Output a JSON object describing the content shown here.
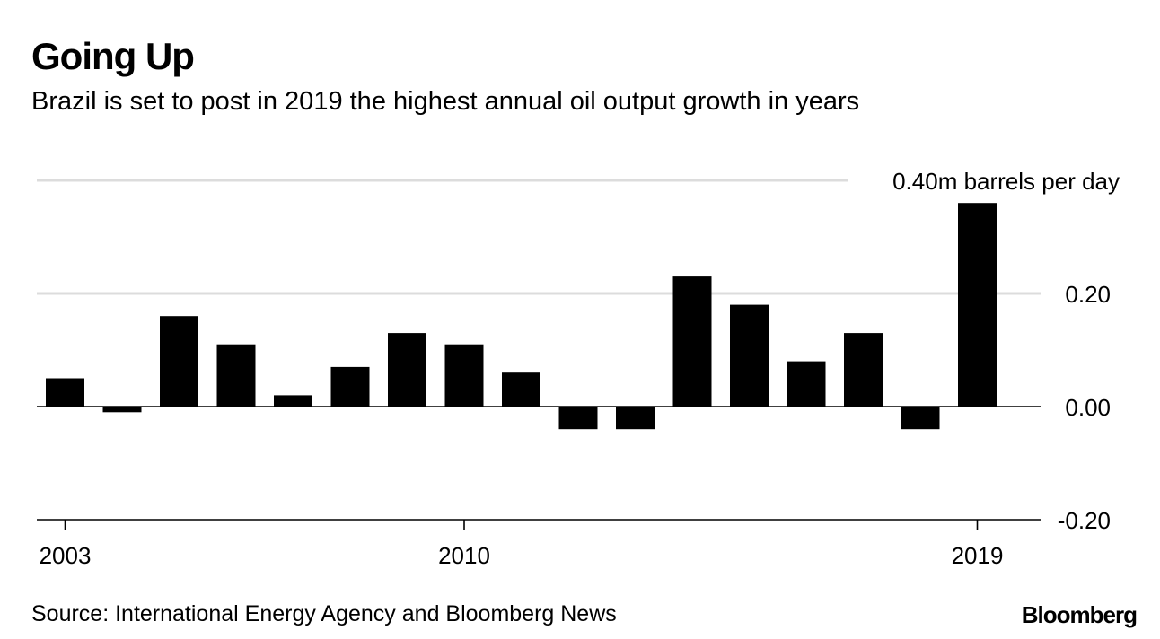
{
  "header": {
    "title": "Going Up",
    "subtitle": "Brazil is set to post in 2019 the highest annual oil output growth in years"
  },
  "footer": {
    "source": "Source: International Energy Agency and Bloomberg News",
    "logo": "Bloomberg"
  },
  "chart_data": {
    "type": "bar",
    "title": "Going Up",
    "subtitle": "Brazil is set to post in 2019 the highest annual oil output growth in years",
    "unit_label": "0.40m barrels per day",
    "categories": [
      "2003",
      "2004",
      "2005",
      "2006",
      "2007",
      "2008",
      "2009",
      "2010",
      "2011",
      "2012",
      "2013",
      "2014",
      "2015",
      "2016",
      "2017",
      "2018",
      "2019"
    ],
    "series": [
      {
        "values": [
          0.05,
          -0.01,
          0.16,
          0.11,
          0.02,
          0.07,
          0.13,
          0.11,
          0.06,
          -0.04,
          -0.04,
          0.23,
          0.18,
          0.08,
          0.13,
          -0.04,
          0.36
        ]
      }
    ],
    "x_tick_labels": [
      "2003",
      "2010",
      "2019"
    ],
    "y_ticks": [
      {
        "value": 0.4,
        "label": "0.40m barrels per day"
      },
      {
        "value": 0.2,
        "label": "0.20"
      },
      {
        "value": 0.0,
        "label": "0.00"
      },
      {
        "value": -0.2,
        "label": "-0.20"
      }
    ],
    "ylim": [
      -0.2,
      0.4
    ],
    "y_axis_side": "right",
    "grid": true,
    "bar_color": "#000000",
    "grid_color": "#dcdcdc"
  }
}
